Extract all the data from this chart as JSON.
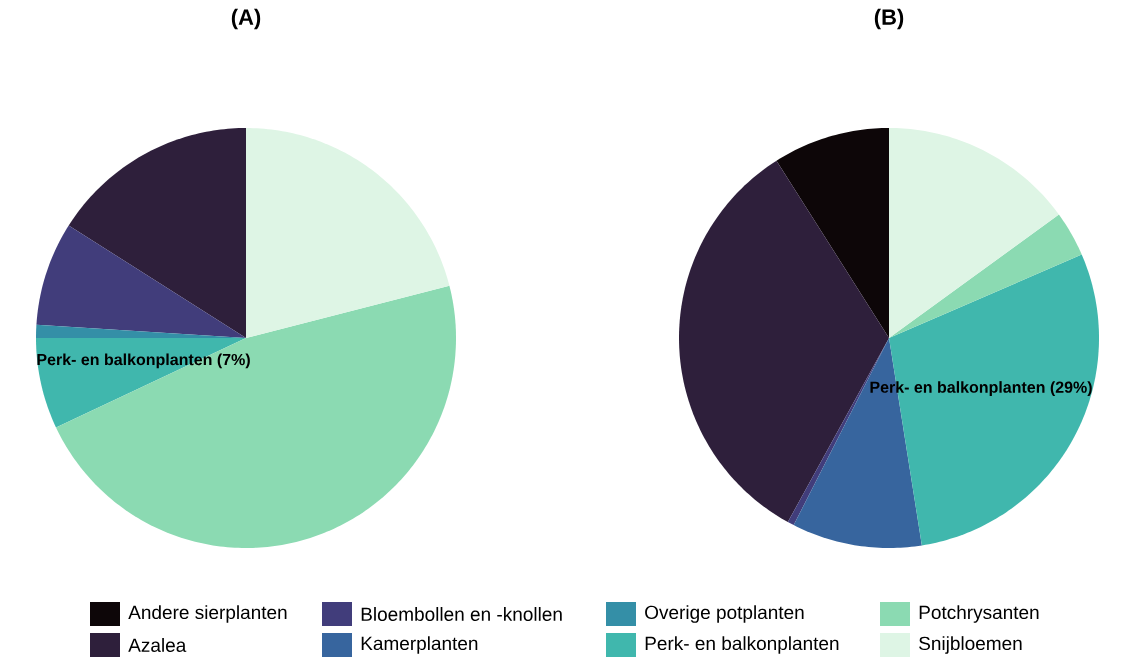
{
  "chart_data": [
    {
      "type": "pie",
      "title": "(A)",
      "legend": "bottom",
      "categories": [
        "Andere sierplanten",
        "Azalea",
        "Bloembollen en -knollen",
        "Kamerplanten",
        "Overige potplanten",
        "Perk- en balkonplanten",
        "Potchrysanten",
        "Snijbloemen"
      ],
      "values": [
        0,
        16,
        8,
        0,
        1,
        7,
        47,
        21
      ],
      "colors": [
        "#0d0608",
        "#2e1f3b",
        "#413d7b",
        "#37659e",
        "#348fa7",
        "#40b7ad",
        "#8bdab2",
        "#def5e5"
      ],
      "value_labels": [
        null,
        null,
        null,
        null,
        null,
        "Perk- en balkonplanten (7%)",
        null,
        null
      ]
    },
    {
      "type": "pie",
      "title": "(B)",
      "categories": [
        null,
        null,
        null,
        null,
        null,
        null,
        null,
        null
      ],
      "values": [
        9,
        33,
        0.5,
        10,
        0,
        29,
        3.5,
        15
      ],
      "colors": [
        "#0d0608",
        "#2e1f3b",
        "#413d7b",
        "#37659e",
        "#348fa7",
        "#40b7ad",
        "#8bdab2",
        "#def5e5"
      ],
      "value_labels": [
        null,
        null,
        null,
        null,
        null,
        "Perk- en balkonplanten (29%)",
        null,
        null
      ]
    }
  ]
}
